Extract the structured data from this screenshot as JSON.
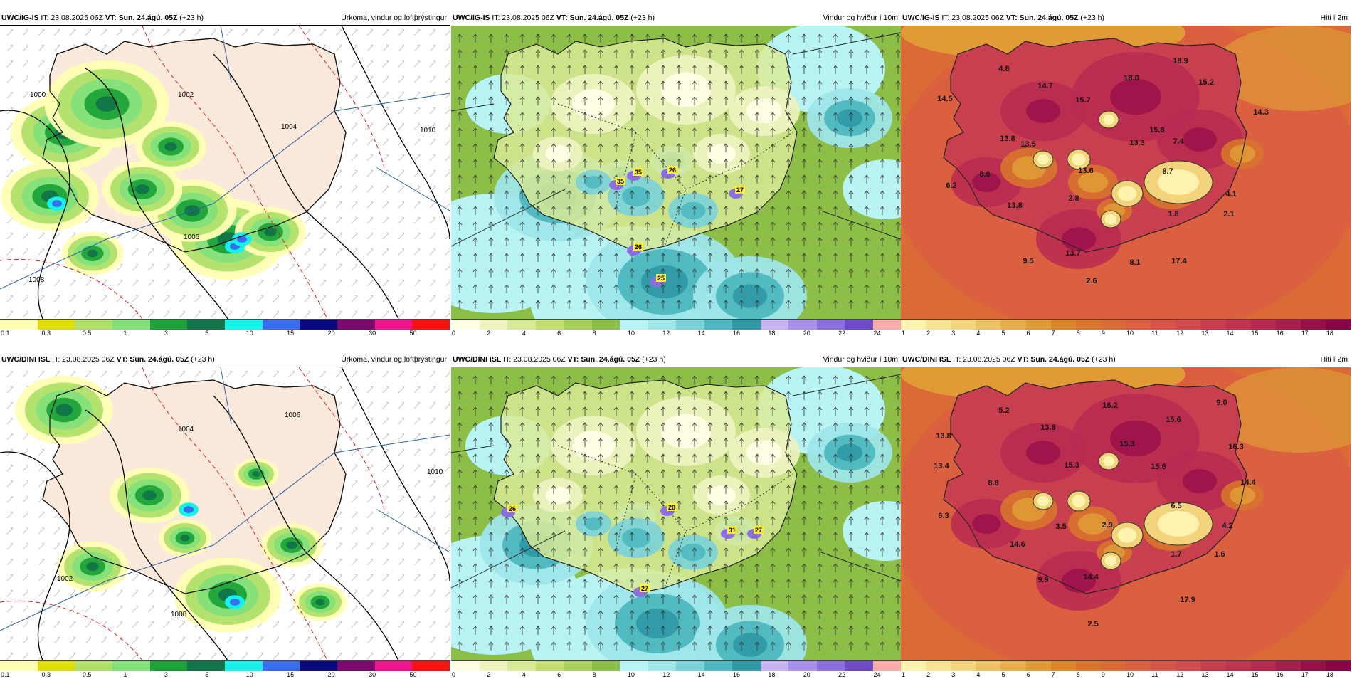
{
  "panels": [
    {
      "model": "UWC/IG-IS",
      "it": "IT: 23.08.2025 06Z",
      "vt_label": "VT:",
      "vt": "Sun. 24.ágú. 05Z",
      "lead": "(+23 h)",
      "title": "Úrkoma, vindur og loftþrýstingur",
      "kind": "precip",
      "scale_labels": [
        "0.1",
        "0.3",
        "0.5",
        "1",
        "3",
        "5",
        "10",
        "15",
        "20",
        "30",
        "50"
      ],
      "scale_colors": [
        "#ffffb4",
        "#dede00",
        "#b0e06a",
        "#84e07a",
        "#1ea33a",
        "#11744a",
        "#14f2ea",
        "#3a6df0",
        "#0a0a80",
        "#7a0a70",
        "#f0148c",
        "#ff1010"
      ],
      "isobars": [
        "1000",
        "1002",
        "1004",
        "1006",
        "1008",
        "1010"
      ]
    },
    {
      "model": "UWC/IG-IS",
      "it": "IT: 23.08.2025 06Z",
      "vt_label": "VT:",
      "vt": "Sun. 24.ágú. 05Z",
      "lead": "(+23 h)",
      "title": "Vindur og hviður í 10m",
      "kind": "wind",
      "scale_labels": [
        "0",
        "2",
        "4",
        "6",
        "8",
        "10",
        "12",
        "14",
        "16",
        "18",
        "20",
        "22",
        "24"
      ],
      "scale_colors": [
        "#ffffe8",
        "#eef3c0",
        "#d8ea96",
        "#c0de72",
        "#a8cf5a",
        "#8cbe48",
        "#b8f4f4",
        "#9ee6ea",
        "#7ad2d8",
        "#4eb8c0",
        "#2f9aa6",
        "#c8b4f0",
        "#a890ea",
        "#8c6ee0",
        "#6e4cc8",
        "#ffaaaa"
      ],
      "gusts": [
        "35",
        "35",
        "26",
        "27",
        "26",
        "25"
      ]
    },
    {
      "model": "UWC/IG-IS",
      "it": "IT: 23.08.2025 06Z",
      "vt_label": "VT:",
      "vt": "Sun. 24.ágú. 05Z",
      "lead": "(+23 h)",
      "title": "Hiti í 2m",
      "kind": "temp",
      "scale_labels": [
        "1",
        "2",
        "3",
        "4",
        "5",
        "6",
        "7",
        "8",
        "9",
        "10",
        "11",
        "12",
        "13",
        "14",
        "15",
        "16",
        "17",
        "18"
      ],
      "scale_colors": [
        "#fff3b0",
        "#f8e594",
        "#f2d47c",
        "#ecc264",
        "#e6ae4c",
        "#e09a36",
        "#da8628",
        "#d8742c",
        "#da6a36",
        "#da6040",
        "#d6544a",
        "#d04a4e",
        "#c84050",
        "#c03450",
        "#b82a50",
        "#a81e4e",
        "#980f4a",
        "#880446"
      ],
      "temps": [
        "4.8",
        "18.9",
        "14.5",
        "14.7",
        "18.0",
        "15.2",
        "15.7",
        "14.3",
        "13.8",
        "13.5",
        "13.3",
        "15.8",
        "7.4",
        "13.6",
        "8.7",
        "8.6",
        "6.2",
        "4.1",
        "2.8",
        "13.8",
        "1.8",
        "2.1",
        "13.7",
        "9.5",
        "8.1",
        "17.4",
        "2.6"
      ]
    },
    {
      "model": "UWC/DINI ISL",
      "it": "IT: 23.08.2025 06Z",
      "vt_label": "VT:",
      "vt": "Sun. 24.ágú. 05Z",
      "lead": "(+23 h)",
      "title": "Úrkoma, vindur og loftþrýstingur",
      "kind": "precip",
      "scale_labels": [
        "0.1",
        "0.3",
        "0.5",
        "1",
        "3",
        "5",
        "10",
        "15",
        "20",
        "30",
        "50"
      ],
      "scale_colors": [
        "#ffffb4",
        "#dede00",
        "#b0e06a",
        "#84e07a",
        "#1ea33a",
        "#11744a",
        "#14f2ea",
        "#3a6df0",
        "#0a0a80",
        "#7a0a70",
        "#f0148c",
        "#ff1010"
      ],
      "isobars": [
        "1002",
        "1004",
        "1006",
        "1008",
        "1010"
      ]
    },
    {
      "model": "UWC/DINI ISL",
      "it": "IT: 23.08.2025 06Z",
      "vt_label": "VT:",
      "vt": "Sun. 24.ágú. 05Z",
      "lead": "(+23 h)",
      "title": "Vindur og hviður í 10m",
      "kind": "wind",
      "scale_labels": [
        "0",
        "2",
        "4",
        "6",
        "8",
        "10",
        "12",
        "14",
        "16",
        "18",
        "20",
        "22",
        "24"
      ],
      "scale_colors": [
        "#ffffe8",
        "#eef3c0",
        "#d8ea96",
        "#c0de72",
        "#a8cf5a",
        "#8cbe48",
        "#b8f4f4",
        "#9ee6ea",
        "#7ad2d8",
        "#4eb8c0",
        "#2f9aa6",
        "#c8b4f0",
        "#a890ea",
        "#8c6ee0",
        "#6e4cc8",
        "#ffaaaa"
      ],
      "gusts": [
        "26",
        "28",
        "31",
        "27",
        "27"
      ]
    },
    {
      "model": "UWC/DINI ISL",
      "it": "IT: 23.08.2025 06Z",
      "vt_label": "VT:",
      "vt": "Sun. 24.ágú. 05Z",
      "lead": "(+23 h)",
      "title": "Hiti í 2m",
      "kind": "temp",
      "scale_labels": [
        "1",
        "2",
        "3",
        "4",
        "5",
        "6",
        "7",
        "8",
        "9",
        "10",
        "11",
        "12",
        "13",
        "14",
        "15",
        "16",
        "17",
        "18"
      ],
      "scale_colors": [
        "#fff3b0",
        "#f8e594",
        "#f2d47c",
        "#ecc264",
        "#e6ae4c",
        "#e09a36",
        "#da8628",
        "#d8742c",
        "#da6a36",
        "#da6040",
        "#d6544a",
        "#d04a4e",
        "#c84050",
        "#c03450",
        "#b82a50",
        "#a81e4e",
        "#980f4a",
        "#880446"
      ],
      "temps": [
        "5.2",
        "16.2",
        "9.0",
        "13.8",
        "13.8",
        "15.6",
        "15.3",
        "16.3",
        "13.4",
        "15.3",
        "15.6",
        "8.8",
        "14.4",
        "6.5",
        "6.3",
        "3.5",
        "2.9",
        "4.2",
        "14.6",
        "1.7",
        "1.6",
        "9.9",
        "14.4",
        "17.9",
        "2.5"
      ]
    }
  ]
}
